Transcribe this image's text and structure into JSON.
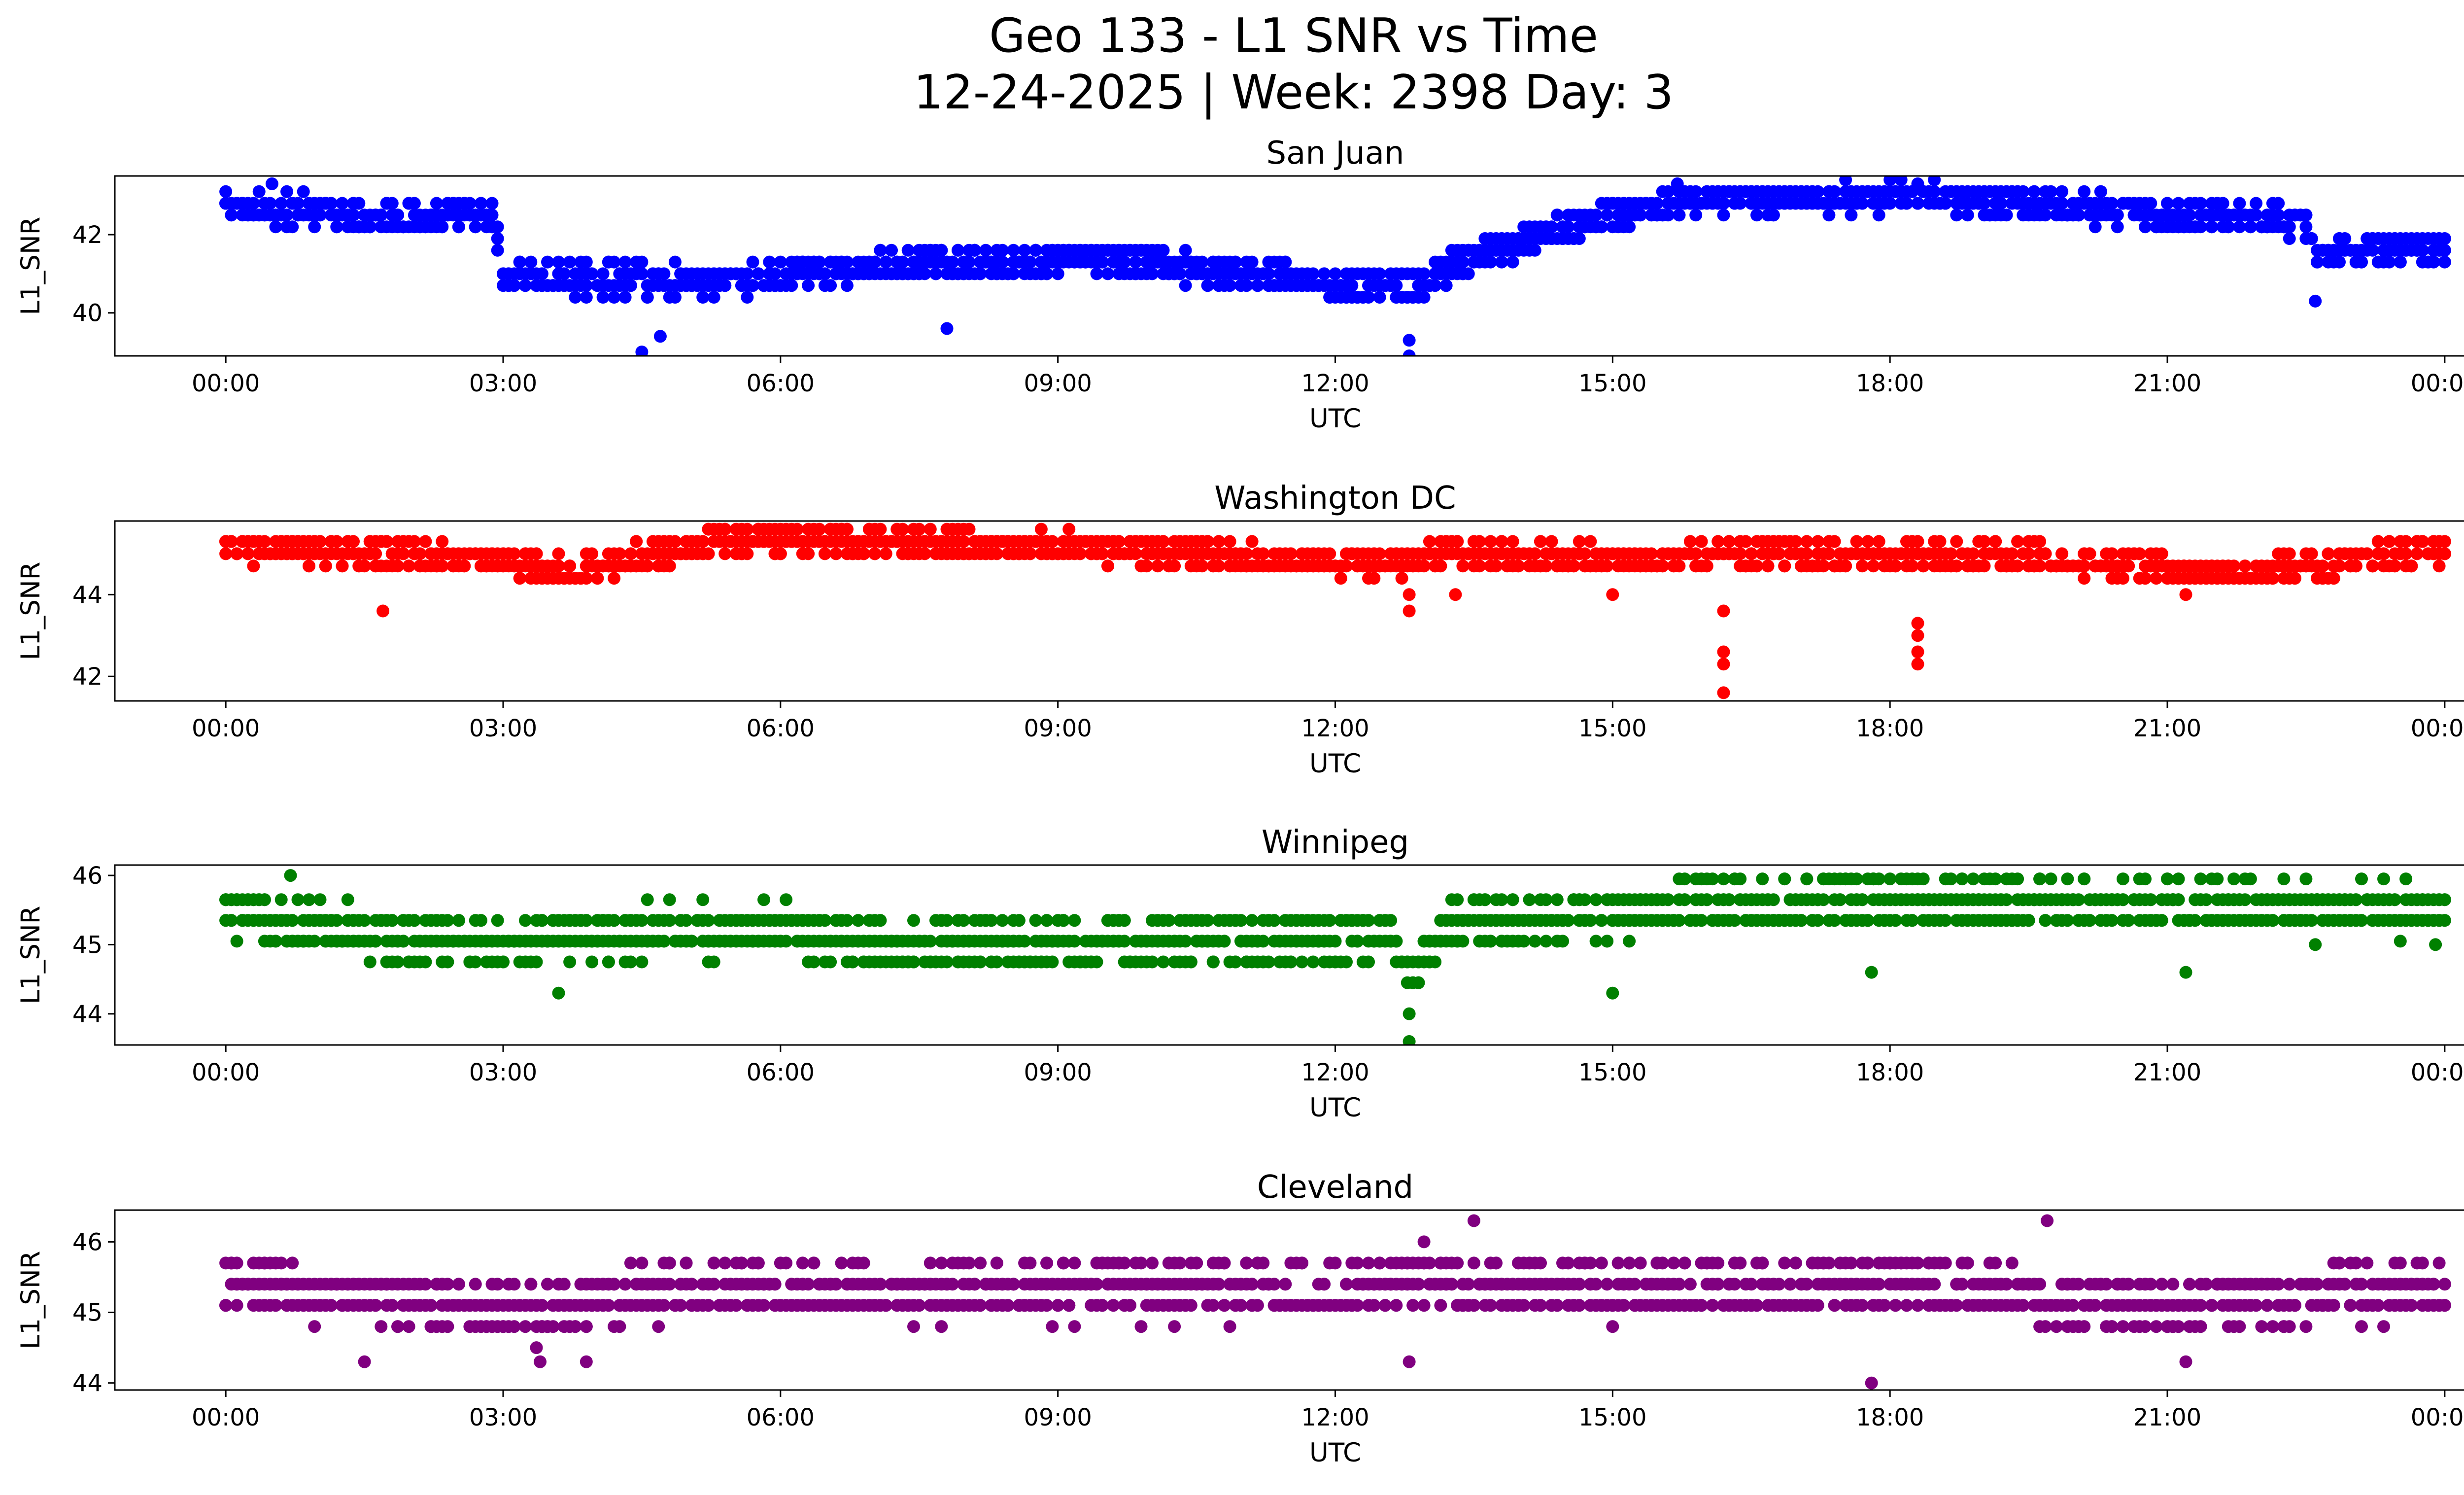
{
  "figure": {
    "title_line1": "Geo 133 - L1 SNR vs Time",
    "title_line2": "12-24-2025 | Week: 2398 Day: 3"
  },
  "chart_data": [
    {
      "type": "scatter",
      "title": "San Juan",
      "xlabel": "UTC",
      "ylabel": "L1_SNR",
      "color": "#0000ff",
      "xlim": [
        -1.2,
        25.2
      ],
      "ylim": [
        38.9,
        43.5
      ],
      "xticks": [
        0,
        3,
        6,
        9,
        12,
        15,
        18,
        21,
        24
      ],
      "xtick_labels": [
        "00:00",
        "03:00",
        "06:00",
        "09:00",
        "12:00",
        "15:00",
        "18:00",
        "21:00",
        "00:00"
      ],
      "yticks": [
        40,
        42
      ],
      "ytick_labels": [
        "40",
        "42"
      ],
      "level_profile": [
        [
          0,
          42.5
        ],
        [
          2.9,
          42.2
        ],
        [
          3.0,
          40.7
        ],
        [
          5.5,
          40.6
        ],
        [
          7.0,
          41.0
        ],
        [
          9.5,
          41.2
        ],
        [
          11.0,
          40.8
        ],
        [
          12.8,
          40.4
        ],
        [
          13.5,
          41.2
        ],
        [
          14.5,
          42.0
        ],
        [
          15.6,
          42.6
        ],
        [
          18.5,
          42.8
        ],
        [
          20.5,
          42.4
        ],
        [
          22.5,
          42.1
        ],
        [
          22.6,
          41.3
        ],
        [
          24,
          41.5
        ]
      ],
      "spread": 0.7,
      "resolution": 0.3,
      "outliers": [
        [
          0.5,
          43.3
        ],
        [
          4.5,
          39.0
        ],
        [
          4.7,
          39.4
        ],
        [
          7.8,
          39.6
        ],
        [
          12.8,
          38.9
        ],
        [
          12.8,
          39.3
        ],
        [
          15.7,
          43.3
        ],
        [
          18.3,
          43.3
        ],
        [
          22.6,
          40.3
        ]
      ]
    },
    {
      "type": "scatter",
      "title": "Washington DC",
      "xlabel": "UTC",
      "ylabel": "L1_SNR",
      "color": "#ff0000",
      "xlim": [
        -1.2,
        25.2
      ],
      "ylim": [
        41.4,
        45.8
      ],
      "xticks": [
        0,
        3,
        6,
        9,
        12,
        15,
        18,
        21,
        24
      ],
      "xtick_labels": [
        "00:00",
        "03:00",
        "06:00",
        "09:00",
        "12:00",
        "15:00",
        "18:00",
        "21:00",
        "00:00"
      ],
      "yticks": [
        42,
        44
      ],
      "ytick_labels": [
        "42",
        "44"
      ],
      "level_profile": [
        [
          0,
          45.1
        ],
        [
          3.0,
          44.9
        ],
        [
          3.8,
          44.6
        ],
        [
          5.3,
          45.3
        ],
        [
          9.0,
          45.2
        ],
        [
          10.6,
          45.0
        ],
        [
          12.5,
          44.7
        ],
        [
          13.2,
          45.0
        ],
        [
          15.0,
          44.9
        ],
        [
          18.0,
          45.0
        ],
        [
          20.5,
          44.8
        ],
        [
          21.5,
          44.5
        ],
        [
          23.0,
          44.8
        ],
        [
          24,
          45.1
        ]
      ],
      "spread": 0.6,
      "resolution": 0.3,
      "outliers": [
        [
          1.7,
          43.6
        ],
        [
          12.8,
          43.6
        ],
        [
          12.8,
          44.0
        ],
        [
          13.3,
          44.0
        ],
        [
          15.0,
          44.0
        ],
        [
          16.2,
          43.6
        ],
        [
          16.2,
          42.6
        ],
        [
          16.2,
          42.3
        ],
        [
          16.2,
          41.6
        ],
        [
          18.3,
          43.3
        ],
        [
          18.3,
          43.0
        ],
        [
          18.3,
          42.6
        ],
        [
          18.3,
          42.3
        ],
        [
          21.2,
          44.0
        ]
      ]
    },
    {
      "type": "scatter",
      "title": "Winnipeg",
      "xlabel": "UTC",
      "ylabel": "L1_SNR",
      "color": "#008000",
      "xlim": [
        -1.2,
        25.2
      ],
      "ylim": [
        43.55,
        46.15
      ],
      "xticks": [
        0,
        3,
        6,
        9,
        12,
        15,
        18,
        21,
        24
      ],
      "xtick_labels": [
        "00:00",
        "03:00",
        "06:00",
        "09:00",
        "12:00",
        "15:00",
        "18:00",
        "21:00",
        "00:00"
      ],
      "yticks": [
        44,
        45,
        46
      ],
      "ytick_labels": [
        "44",
        "45",
        "46"
      ],
      "level_profile": [
        [
          0,
          45.45
        ],
        [
          1.7,
          45.1
        ],
        [
          3.0,
          44.9
        ],
        [
          4.0,
          45.1
        ],
        [
          6.0,
          45.2
        ],
        [
          7.0,
          44.9
        ],
        [
          11.0,
          45.0
        ],
        [
          12.6,
          45.1
        ],
        [
          12.8,
          44.5
        ],
        [
          13.2,
          45.2
        ],
        [
          15.0,
          45.4
        ],
        [
          17.5,
          45.6
        ],
        [
          20.5,
          45.5
        ],
        [
          24,
          45.45
        ]
      ],
      "spread": 0.65,
      "resolution": 0.3,
      "outliers": [
        [
          0.7,
          46.0
        ],
        [
          3.6,
          44.3
        ],
        [
          12.8,
          44.0
        ],
        [
          12.8,
          43.6
        ],
        [
          15.0,
          44.3
        ],
        [
          17.8,
          44.6
        ],
        [
          21.2,
          44.6
        ],
        [
          22.6,
          45.0
        ],
        [
          23.9,
          45.0
        ]
      ]
    },
    {
      "type": "scatter",
      "title": "Cleveland",
      "xlabel": "UTC",
      "ylabel": "L1_SNR",
      "color": "#800080",
      "xlim": [
        -1.2,
        25.2
      ],
      "ylim": [
        43.9,
        46.45
      ],
      "xticks": [
        0,
        3,
        6,
        9,
        12,
        15,
        18,
        21,
        24
      ],
      "xtick_labels": [
        "00:00",
        "03:00",
        "06:00",
        "09:00",
        "12:00",
        "15:00",
        "18:00",
        "21:00",
        "00:00"
      ],
      "yticks": [
        44,
        45,
        46
      ],
      "ytick_labels": [
        "44",
        "45",
        "46"
      ],
      "level_profile": [
        [
          0,
          45.3
        ],
        [
          2.0,
          45.1
        ],
        [
          3.5,
          44.9
        ],
        [
          5.0,
          45.3
        ],
        [
          8.0,
          45.2
        ],
        [
          12.0,
          45.2
        ],
        [
          13.0,
          45.4
        ],
        [
          15.0,
          45.2
        ],
        [
          18.0,
          45.3
        ],
        [
          20.5,
          45.0
        ],
        [
          22.5,
          45.1
        ],
        [
          24,
          45.3
        ]
      ],
      "spread": 0.75,
      "resolution": 0.3,
      "outliers": [
        [
          1.5,
          44.3
        ],
        [
          3.4,
          44.3
        ],
        [
          3.9,
          44.3
        ],
        [
          12.8,
          44.3
        ],
        [
          13.5,
          46.3
        ],
        [
          17.8,
          44.0
        ],
        [
          19.7,
          46.3
        ],
        [
          21.2,
          44.3
        ]
      ]
    }
  ]
}
